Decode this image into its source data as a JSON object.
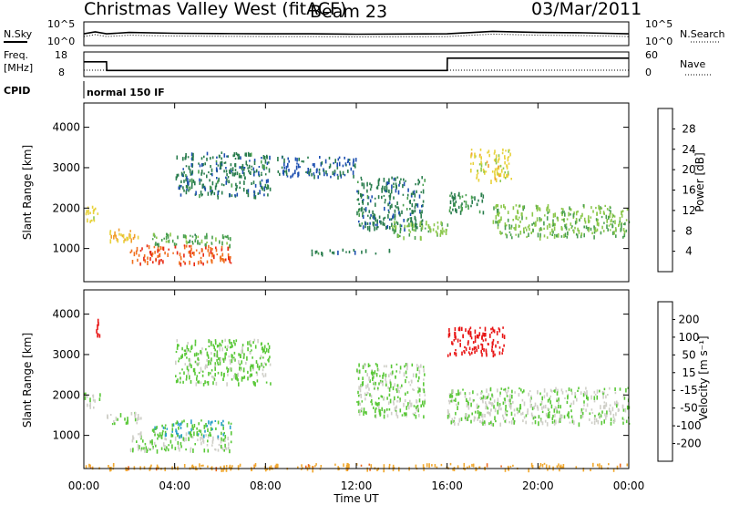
{
  "title_left": "Christmas Valley West (fitACF)",
  "title_beam": "Beam 23",
  "title_date": "03/Mar/2011",
  "time_axis": {
    "label": "Time UT",
    "ticks": [
      "00:00",
      "04:00",
      "08:00",
      "12:00",
      "16:00",
      "20:00",
      "00:00"
    ],
    "start_hour": 0,
    "end_hour": 24
  },
  "strip_top": {
    "left_label": "N.Sky",
    "left_ticks": [
      "10^5",
      "10^0"
    ],
    "right_label": "N.Search",
    "right_ticks": [
      "10^5",
      "10^0"
    ]
  },
  "strip_freq": {
    "left_label_1": "Freq.",
    "left_label_2": "[MHz]",
    "left_ticks": [
      "18",
      "8"
    ],
    "right_label": "Nave",
    "right_ticks": [
      "60",
      "0"
    ]
  },
  "cpid": {
    "label": "CPID",
    "value": "normal 150 IF"
  },
  "power_panel": {
    "ylabel": "Slant Range [km]",
    "yticks": [
      "4000",
      "3000",
      "2000",
      "1000"
    ],
    "colorbar_label": "Power [dB]",
    "colorbar_ticks": [
      "28",
      "24",
      "20",
      "16",
      "12",
      "8",
      "4"
    ]
  },
  "velocity_panel": {
    "ylabel": "Slant Range [km]",
    "yticks": [
      "4000",
      "3000",
      "2000",
      "1000"
    ],
    "colorbar_label": "Velocity [m s⁻¹]",
    "colorbar_ticks": [
      "200",
      "100",
      "50",
      "15",
      "-15",
      "-50",
      "-100",
      "-200"
    ]
  },
  "colors": {
    "power_scale": [
      "#0a1aee",
      "#1d4fb0",
      "#2a7d4e",
      "#4aa050",
      "#8cc84c",
      "#e8d23a",
      "#f0a030",
      "#f07020",
      "#e82a14"
    ],
    "velocity_scale": [
      "#e81414",
      "#ee6a1e",
      "#f0a830",
      "#cfcfc8",
      "#cfcfc8",
      "#5ac838",
      "#2aa0c8",
      "#1a3ab8"
    ]
  },
  "chart_data": [
    {
      "type": "line",
      "title": "",
      "xlabel": "",
      "ylabel": "N.Sky",
      "series": [
        {
          "name": "",
          "x_hours": [
            0,
            0.5,
            1,
            2,
            4,
            6,
            8,
            10,
            12,
            14,
            16,
            18,
            20,
            22,
            24
          ],
          "values": [
            300,
            800,
            300,
            600,
            400,
            350,
            300,
            300,
            250,
            280,
            300,
            1000,
            600,
            500,
            300
          ]
        }
      ],
      "ylog": true
    },
    {
      "type": "line",
      "title": "",
      "xlabel": "",
      "ylabel": "Freq. [MHz]",
      "series": [
        {
          "name": "",
          "x_hours": [
            0,
            1,
            1.01,
            16,
            16.01,
            24
          ],
          "values": [
            14,
            14,
            10.5,
            10.5,
            15.5,
            15.5
          ]
        }
      ],
      "ylim": [
        8,
        18
      ]
    },
    {
      "type": "heatmap",
      "title": "",
      "xlabel": "Time UT",
      "ylabel": "Slant Range [km]",
      "zlabel": "Power [dB]",
      "xlim_hours": [
        0,
        24
      ],
      "ylim": [
        180,
        4600
      ],
      "zlim": [
        0,
        30
      ],
      "regions": [
        {
          "t": [
            0.0,
            0.6
          ],
          "range": [
            1650,
            2100
          ],
          "value": 18
        },
        {
          "t": [
            1.0,
            2.5
          ],
          "range": [
            1200,
            1500
          ],
          "value": 20
        },
        {
          "t": [
            2.0,
            6.5
          ],
          "range": [
            650,
            1100
          ],
          "value": 26
        },
        {
          "t": [
            3.0,
            6.5
          ],
          "range": [
            1100,
            1400
          ],
          "value": 12
        },
        {
          "t": [
            4.0,
            8.2
          ],
          "range": [
            2300,
            3400
          ],
          "value": 8
        },
        {
          "t": [
            8.5,
            12.0
          ],
          "range": [
            2800,
            3300
          ],
          "value": 6
        },
        {
          "t": [
            12.0,
            15.0
          ],
          "range": [
            1500,
            2800
          ],
          "value": 8
        },
        {
          "t": [
            13.5,
            16.0
          ],
          "range": [
            1300,
            1700
          ],
          "value": 14
        },
        {
          "t": [
            16.0,
            17.6
          ],
          "range": [
            1900,
            2400
          ],
          "value": 10
        },
        {
          "t": [
            17.0,
            18.8
          ],
          "range": [
            2700,
            3500
          ],
          "value": 18
        },
        {
          "t": [
            18.0,
            24.0
          ],
          "range": [
            1300,
            2100
          ],
          "value": 14
        },
        {
          "t": [
            10.0,
            13.5
          ],
          "range": [
            900,
            1000
          ],
          "value": 8
        }
      ]
    },
    {
      "type": "heatmap",
      "title": "",
      "xlabel": "Time UT",
      "ylabel": "Slant Range [km]",
      "zlabel": "Velocity [m s⁻¹]",
      "xlim_hours": [
        0,
        24
      ],
      "ylim": [
        180,
        4600
      ],
      "zlim": [
        -250,
        250
      ],
      "regions": [
        {
          "t": [
            0.0,
            0.7
          ],
          "range": [
            1700,
            2100
          ],
          "value": 0
        },
        {
          "t": [
            0.5,
            0.7
          ],
          "range": [
            3500,
            3900
          ],
          "value": -200
        },
        {
          "t": [
            1.0,
            2.5
          ],
          "range": [
            1300,
            1600
          ],
          "value": 0
        },
        {
          "t": [
            2.0,
            6.5
          ],
          "range": [
            650,
            1100
          ],
          "value": 0
        },
        {
          "t": [
            3.0,
            6.5
          ],
          "range": [
            1000,
            1400
          ],
          "value": 30
        },
        {
          "t": [
            4.0,
            8.2
          ],
          "range": [
            2300,
            3400
          ],
          "value": 10
        },
        {
          "t": [
            12.0,
            15.0
          ],
          "range": [
            1500,
            2800
          ],
          "value": 5
        },
        {
          "t": [
            16.0,
            18.5
          ],
          "range": [
            3000,
            3700
          ],
          "value": -200
        },
        {
          "t": [
            16.0,
            24.0
          ],
          "range": [
            1300,
            2200
          ],
          "value": 0
        },
        {
          "t": [
            0.0,
            24.0
          ],
          "range": [
            180,
            320
          ],
          "value": -60
        }
      ]
    }
  ]
}
